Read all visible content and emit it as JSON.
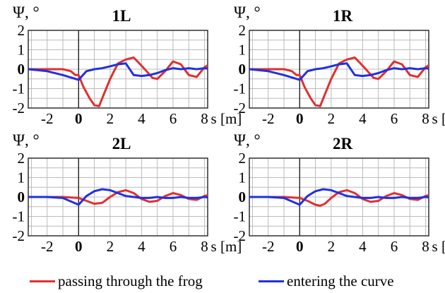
{
  "legend": {
    "red_label": "passing through the frog",
    "blue_label": "entering the curve"
  },
  "colors": {
    "red": "#e03030",
    "blue": "#2030e0",
    "grid": "#bbbbbb"
  },
  "chart_data": [
    {
      "type": "line",
      "title": "1L",
      "ylabel": "Ψ, °",
      "xlabel": "s [m]",
      "xlim": [
        -3.2,
        8.2
      ],
      "ylim": [
        -2,
        2
      ],
      "xticks": [
        -2,
        0,
        2,
        4,
        6,
        8
      ],
      "xtick_labels": [
        "-2",
        "0",
        "2",
        "4",
        "6",
        "8"
      ],
      "yticks": [
        -2,
        -1,
        0,
        1,
        2
      ],
      "ytick_labels": [
        "-2",
        "-1",
        "0",
        "1",
        "2"
      ],
      "grid": true,
      "series": [
        {
          "name": "passing through the frog",
          "color": "red",
          "x": [
            -3.2,
            -2,
            -1,
            -0.5,
            -0.2,
            0,
            0.3,
            0.7,
            1,
            1.3,
            1.6,
            2,
            2.5,
            3,
            3.5,
            3.8,
            4.2,
            4.7,
            5,
            5.5,
            6,
            6.5,
            7,
            7.5,
            8,
            8.5,
            9
          ],
          "y": [
            0,
            0,
            0,
            -0.1,
            -0.3,
            -0.3,
            -0.9,
            -1.5,
            -1.85,
            -1.9,
            -1.3,
            -0.5,
            0.3,
            0.5,
            0.6,
            0.35,
            0,
            -0.45,
            -0.5,
            -0.1,
            0.4,
            0.25,
            -0.3,
            -0.4,
            0.1,
            0.35,
            -0.2
          ]
        },
        {
          "name": "entering the curve",
          "color": "blue",
          "x": [
            -3.2,
            -2,
            -1,
            0,
            0.5,
            1,
            1.5,
            2,
            2.5,
            3,
            3.5,
            4,
            4.5,
            5,
            5.5,
            6,
            6.5,
            7,
            7.5,
            8,
            8.5,
            9
          ],
          "y": [
            0,
            -0.1,
            -0.3,
            -0.55,
            -0.1,
            0,
            0.05,
            0.15,
            0.25,
            0.3,
            -0.3,
            -0.35,
            -0.3,
            -0.2,
            -0.05,
            0.05,
            0,
            0.05,
            0,
            0.05,
            0,
            0.05
          ]
        }
      ]
    },
    {
      "type": "line",
      "title": "1R",
      "ylabel": "Ψ, °",
      "xlabel": "s [m]",
      "xlim": [
        -3.2,
        8.2
      ],
      "ylim": [
        -2,
        2
      ],
      "xticks": [
        -2,
        0,
        2,
        4,
        6,
        8
      ],
      "xtick_labels": [
        "-2",
        "0",
        "2",
        "4",
        "6",
        "8"
      ],
      "yticks": [
        -2,
        -1,
        0,
        1,
        2
      ],
      "ytick_labels": [
        "-2",
        "-1",
        "0",
        "1",
        "2"
      ],
      "grid": true,
      "series": [
        {
          "name": "passing through the frog",
          "color": "red",
          "x": [
            -3.2,
            -2,
            -1,
            -0.5,
            -0.2,
            0,
            0.3,
            0.7,
            1,
            1.3,
            1.6,
            2,
            2.5,
            3,
            3.5,
            3.8,
            4.2,
            4.7,
            5,
            5.5,
            6,
            6.5,
            7,
            7.5,
            8,
            8.5,
            9
          ],
          "y": [
            0,
            0,
            0,
            -0.1,
            -0.3,
            -0.3,
            -0.9,
            -1.5,
            -1.85,
            -1.9,
            -1.3,
            -0.5,
            0.3,
            0.5,
            0.6,
            0.35,
            0,
            -0.45,
            -0.5,
            -0.1,
            0.4,
            0.25,
            -0.3,
            -0.4,
            0.1,
            0.35,
            -0.2
          ]
        },
        {
          "name": "entering the curve",
          "color": "blue",
          "x": [
            -3.2,
            -2,
            -1,
            0,
            0.5,
            1,
            1.5,
            2,
            2.5,
            3,
            3.5,
            4,
            4.5,
            5,
            5.5,
            6,
            6.5,
            7,
            7.5,
            8,
            8.5,
            9
          ],
          "y": [
            0,
            -0.1,
            -0.3,
            -0.55,
            -0.1,
            0,
            0.05,
            0.15,
            0.25,
            0.3,
            -0.3,
            -0.35,
            -0.3,
            -0.2,
            -0.05,
            0.05,
            0,
            0.05,
            0,
            0.05,
            0,
            0.05
          ]
        }
      ]
    },
    {
      "type": "line",
      "title": "2L",
      "ylabel": "Ψ, °",
      "xlabel": "s [m]",
      "xlim": [
        -3.2,
        8.2
      ],
      "ylim": [
        -2,
        2
      ],
      "xticks": [
        -2,
        0,
        2,
        4,
        6,
        8
      ],
      "xtick_labels": [
        "-2",
        "0",
        "2",
        "4",
        "6",
        "8"
      ],
      "yticks": [
        -2,
        -1,
        0,
        1,
        2
      ],
      "ytick_labels": [
        "-2",
        "-1",
        "0",
        "1",
        "2"
      ],
      "grid": true,
      "series": [
        {
          "name": "passing through the frog",
          "color": "red",
          "x": [
            -3.2,
            -2,
            -1,
            0,
            0.5,
            1,
            1.5,
            2,
            2.5,
            3,
            3.5,
            4,
            4.5,
            5,
            5.5,
            6,
            6.5,
            7,
            7.5,
            8,
            8.5,
            9
          ],
          "y": [
            0,
            0,
            0,
            -0.05,
            -0.2,
            -0.35,
            -0.3,
            0,
            0.25,
            0.35,
            0.2,
            -0.1,
            -0.25,
            -0.2,
            0.05,
            0.2,
            0.1,
            -0.1,
            -0.15,
            0.05,
            0.15,
            -0.05
          ]
        },
        {
          "name": "entering the curve",
          "color": "blue",
          "x": [
            -3.2,
            -2,
            -1,
            0,
            0.5,
            1,
            1.5,
            2,
            2.5,
            3,
            3.5,
            4,
            4.5,
            5,
            5.5,
            6,
            6.5,
            7,
            7.5,
            8,
            8.5,
            9
          ],
          "y": [
            0,
            0,
            -0.05,
            -0.4,
            0.05,
            0.3,
            0.4,
            0.35,
            0.2,
            0.05,
            0,
            -0.05,
            -0.05,
            0,
            -0.05,
            -0.05,
            0,
            -0.05,
            -0.05,
            0,
            -0.05,
            0
          ]
        }
      ]
    },
    {
      "type": "line",
      "title": "2R",
      "ylabel": "Ψ, °",
      "xlabel": "s [m]",
      "xlim": [
        -3.2,
        8.2
      ],
      "ylim": [
        -2,
        2
      ],
      "xticks": [
        -2,
        0,
        2,
        4,
        6,
        8
      ],
      "xtick_labels": [
        "-2",
        "0",
        "2",
        "4",
        "6",
        "8"
      ],
      "yticks": [
        -2,
        -1,
        0,
        1,
        2
      ],
      "ytick_labels": [
        "-2",
        "-1",
        "0",
        "1",
        "2"
      ],
      "grid": true,
      "series": [
        {
          "name": "passing through the frog",
          "color": "red",
          "x": [
            -3.2,
            -2,
            -1,
            0,
            0.5,
            1,
            1.3,
            1.6,
            2,
            2.5,
            3,
            3.5,
            4,
            4.5,
            5,
            5.5,
            6,
            6.5,
            7,
            7.5,
            8,
            8.5,
            9
          ],
          "y": [
            0,
            0,
            0,
            -0.05,
            -0.2,
            -0.4,
            -0.45,
            -0.35,
            -0.05,
            0.25,
            0.35,
            0.2,
            -0.1,
            -0.25,
            -0.2,
            0.05,
            0.2,
            0.1,
            -0.1,
            -0.15,
            0.05,
            0.15,
            -0.05
          ]
        },
        {
          "name": "entering the curve",
          "color": "blue",
          "x": [
            -3.2,
            -2,
            -1,
            0,
            0.5,
            1,
            1.5,
            2,
            2.5,
            3,
            3.5,
            4,
            4.5,
            5,
            5.5,
            6,
            6.5,
            7,
            7.5,
            8,
            8.5,
            9
          ],
          "y": [
            0,
            0,
            -0.05,
            -0.4,
            0.05,
            0.3,
            0.4,
            0.35,
            0.2,
            0.05,
            0,
            -0.05,
            -0.05,
            0,
            -0.05,
            -0.05,
            0,
            -0.05,
            -0.05,
            0,
            -0.05,
            0
          ]
        }
      ]
    }
  ]
}
